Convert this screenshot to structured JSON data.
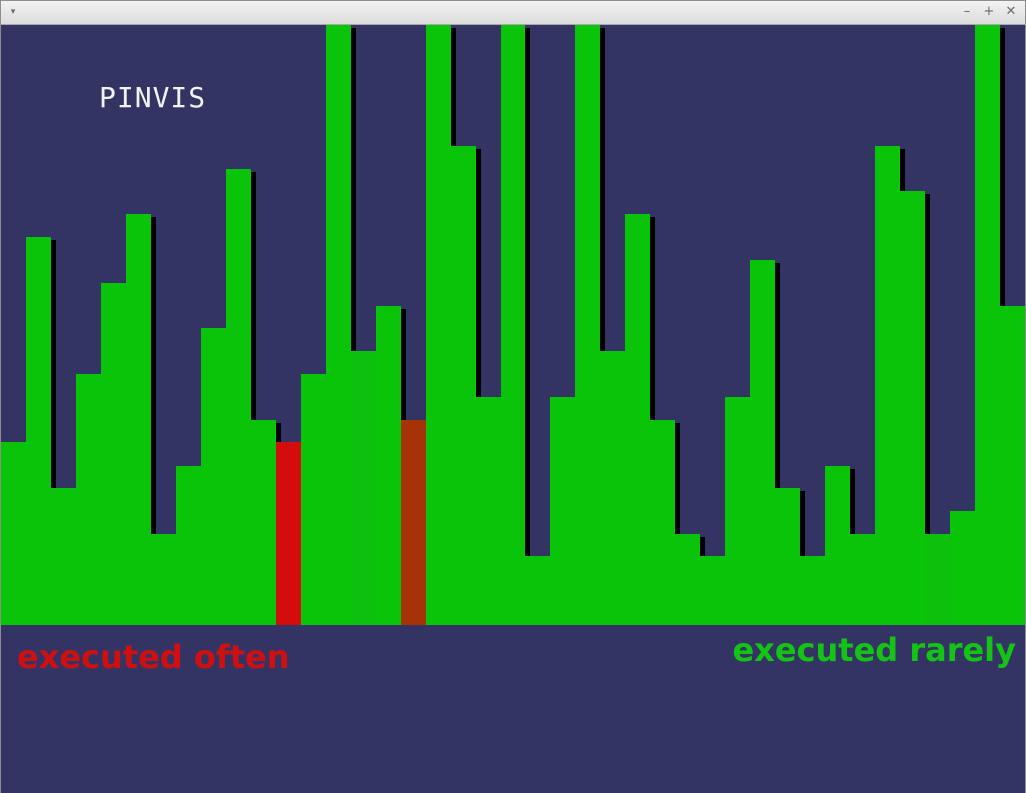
{
  "window": {
    "menu_glyph": "▾",
    "minimize_glyph": "–",
    "maximize_glyph": "+",
    "close_glyph": "✕"
  },
  "app": {
    "title": "PINVIS"
  },
  "legend": {
    "often_label": "executed often",
    "rarely_label": "executed rarely",
    "often_color": "#d01010",
    "rarely_color": "#14c414"
  },
  "colors": {
    "background": "#343464",
    "shadow": "#000000"
  },
  "chart_data": {
    "type": "bar",
    "ylim": [
      0,
      600
    ],
    "values": [
      183,
      388,
      137,
      251,
      342,
      411,
      91,
      159,
      297,
      456,
      205,
      183,
      251,
      600,
      274,
      319,
      205,
      600,
      479,
      228,
      600,
      69,
      228,
      600,
      274,
      411,
      205,
      91,
      69,
      228,
      365,
      137,
      69,
      159,
      91,
      479,
      434,
      91,
      114,
      600,
      319
    ],
    "colors": [
      "#0ac40a",
      "#0ac40a",
      "#0ac40a",
      "#0ac40a",
      "#0ac40a",
      "#0ac40a",
      "#0ac40a",
      "#0ac40a",
      "#0ac40a",
      "#0ac40a",
      "#0ac40a",
      "#d40c0c",
      "#0ac40a",
      "#0ac40a",
      "#0ec00e",
      "#0ac40a",
      "#a83208",
      "#0ac40a",
      "#0ac40a",
      "#0ac40a",
      "#0ac40a",
      "#0ac40a",
      "#0ac40a",
      "#0ac40a",
      "#0ac40a",
      "#0ac40a",
      "#0ac40a",
      "#0ac40a",
      "#0ac40a",
      "#0ac40a",
      "#0ac40a",
      "#0ac40a",
      "#0ac40a",
      "#0ac40a",
      "#0ac40a",
      "#0ac40a",
      "#0ac40a",
      "#0cc00c",
      "#0ac40a",
      "#0ac40a",
      "#0ac40a"
    ]
  }
}
